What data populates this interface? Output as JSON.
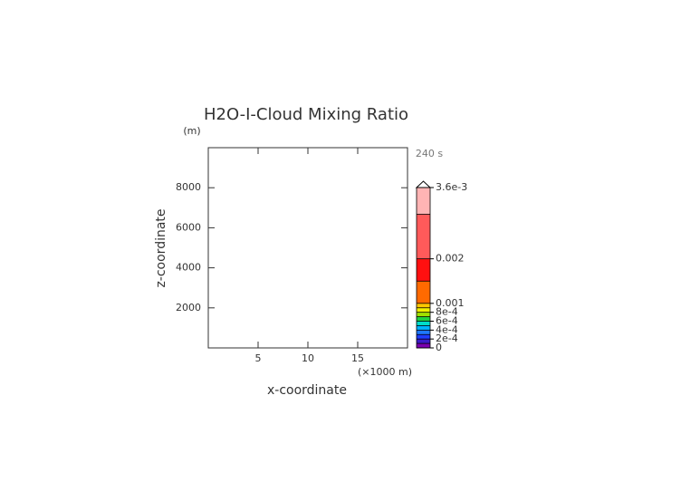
{
  "chart_data": {
    "type": "contour",
    "title": "H2O-I-Cloud Mixing Ratio",
    "y_unit": "(m)",
    "x_unit": "(×1000 m)",
    "time_label": "240 s",
    "x_label": "x-coordinate",
    "y_label": "z-coordinate",
    "xlim": [
      0,
      20
    ],
    "xticks": [
      5,
      10,
      15
    ],
    "ylim": [
      0,
      10000
    ],
    "yticks": [
      2000,
      4000,
      6000,
      8000
    ],
    "colorbar": {
      "lim": [
        0,
        0.0036
      ],
      "bounds": [
        0,
        0.0001,
        0.0002,
        0.0003,
        0.0004,
        0.0005,
        0.0006,
        0.0007,
        0.0008,
        0.0009,
        0.001,
        0.0015,
        0.002,
        0.003,
        0.0036
      ],
      "colors": [
        "#7a00b0",
        "#3c1cc8",
        "#1e3cff",
        "#1e78ff",
        "#00b4ff",
        "#00dcc8",
        "#20d040",
        "#a0e000",
        "#f0f000",
        "#ffc800",
        "#ff6a00",
        "#ff1010",
        "#ff5a5a",
        "#ffb4b4"
      ],
      "ticks": [
        0,
        {
          "value": 0.0002,
          "label": "2e-4"
        },
        {
          "value": 0.0004,
          "label": "4e-4"
        },
        {
          "value": 0.0006,
          "label": "6e-4"
        },
        {
          "value": 0.0008,
          "label": "8e-4"
        },
        0.001,
        0.002,
        {
          "value": 0.0036,
          "label": "3.6e-3"
        }
      ]
    }
  }
}
